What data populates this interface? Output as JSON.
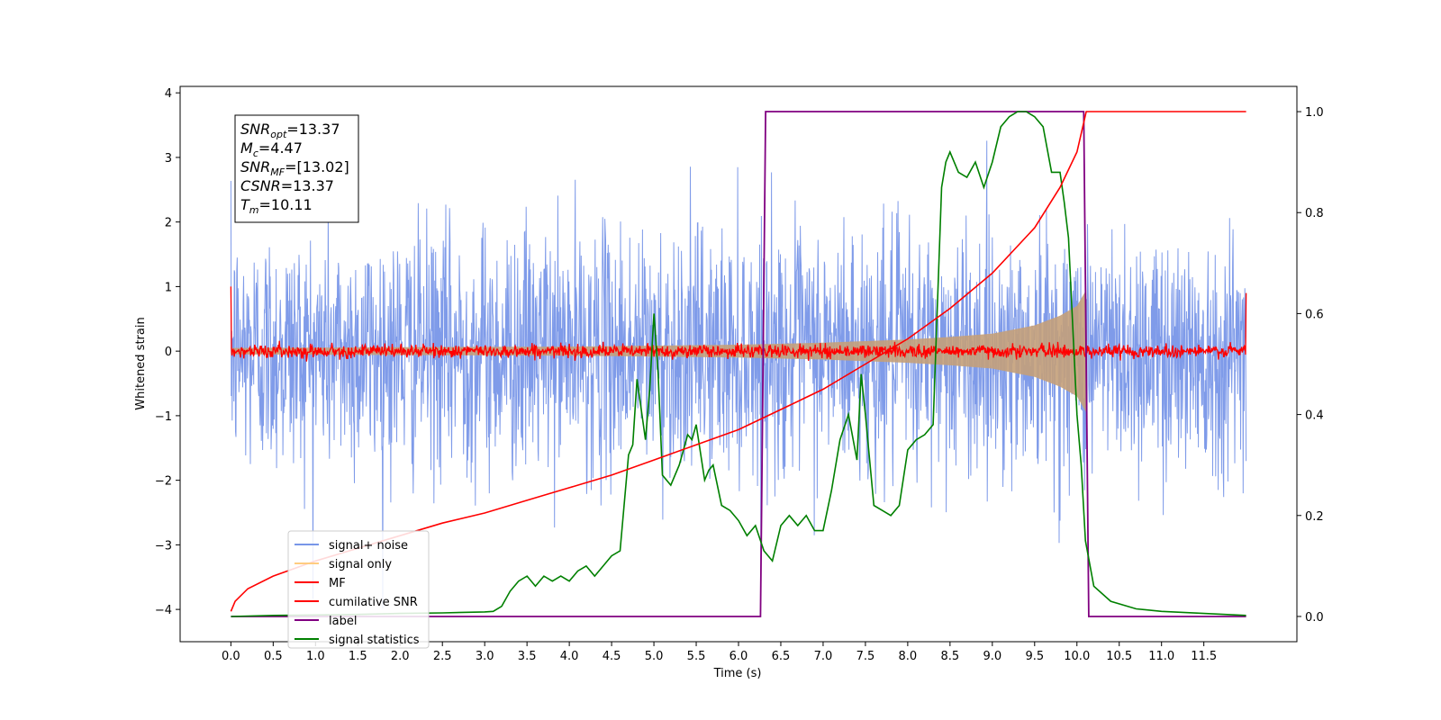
{
  "chart_data": {
    "type": "line",
    "title": "",
    "xlabel": "Time (s)",
    "ylabel": "Whitened strain",
    "xlim": [
      -0.6,
      12.6
    ],
    "ylim_left": [
      -4.5,
      4.1
    ],
    "ylim_right": [
      -0.05,
      1.05
    ],
    "x_ticks": [
      "0.0",
      "0.5",
      "1.0",
      "1.5",
      "2.0",
      "2.5",
      "3.0",
      "3.5",
      "4.0",
      "4.5",
      "5.0",
      "5.5",
      "6.0",
      "6.5",
      "7.0",
      "7.5",
      "8.0",
      "8.5",
      "9.0",
      "9.5",
      "10.0",
      "10.5",
      "11.0",
      "11.5"
    ],
    "y_ticks_left": [
      "4",
      "3",
      "2",
      "1",
      "0",
      "−1",
      "−2",
      "−3",
      "−4"
    ],
    "y_ticks_right": [
      "0.0",
      "0.2",
      "0.4",
      "0.6",
      "0.8",
      "1.0"
    ],
    "annotation": [
      {
        "var": "SNR",
        "sub": "opt",
        "value": "=13.37"
      },
      {
        "var": "M",
        "sub": "c",
        "value": "=4.47"
      },
      {
        "var": "SNR",
        "sub": "MF",
        "value": "=[13.02]"
      },
      {
        "var": "CSNR",
        "sub": "",
        "value": "=13.37"
      },
      {
        "var": "T",
        "sub": "m",
        "value": "=10.11"
      }
    ],
    "legend": [
      {
        "name": "signal+ noise",
        "color": "#7896e8"
      },
      {
        "name": "signal only",
        "color": "#ffcc80"
      },
      {
        "name": "MF",
        "color": "#ff0000"
      },
      {
        "name": "cumilative SNR",
        "color": "#ff0000"
      },
      {
        "name": "label",
        "color": "#800080"
      },
      {
        "name": "signal statistics",
        "color": "#008000"
      }
    ],
    "legend_location": "lower-left",
    "colors": {
      "noise": "#7896e8",
      "signal": "#c4a07a",
      "mf": "#ff0000",
      "csnr": "#ff0000",
      "label": "#800080",
      "stats": "#008000"
    },
    "series": [
      {
        "name": "signal+ noise",
        "axis": "left",
        "x_range": [
          0,
          12
        ],
        "amplitude_std": 0.95,
        "y_range": [
          -4.15,
          3.7
        ]
      },
      {
        "name": "signal only",
        "axis": "left",
        "envelope": [
          [
            0,
            0.05
          ],
          [
            2,
            0.06
          ],
          [
            4,
            0.07
          ],
          [
            6,
            0.1
          ],
          [
            7,
            0.13
          ],
          [
            8,
            0.18
          ],
          [
            8.5,
            0.22
          ],
          [
            9,
            0.27
          ],
          [
            9.5,
            0.4
          ],
          [
            9.8,
            0.55
          ],
          [
            10,
            0.7
          ],
          [
            10.11,
            0.95
          ],
          [
            10.12,
            0
          ]
        ]
      },
      {
        "name": "MF",
        "axis": "left",
        "x_range": [
          0,
          12
        ],
        "baseline": 0.0,
        "amplitude_std": 0.05,
        "edges": [
          [
            0,
            1.0
          ],
          [
            12,
            0.9
          ]
        ]
      },
      {
        "name": "cumilative SNR",
        "axis": "right",
        "x": [
          0,
          0.05,
          0.2,
          0.5,
          1,
          1.5,
          2,
          2.5,
          3,
          3.5,
          4,
          4.5,
          5,
          5.5,
          6,
          6.5,
          7,
          7.5,
          8,
          8.5,
          9,
          9.5,
          9.8,
          10,
          10.11,
          12
        ],
        "y": [
          0.01,
          0.03,
          0.055,
          0.08,
          0.11,
          0.135,
          0.16,
          0.185,
          0.205,
          0.23,
          0.255,
          0.28,
          0.31,
          0.34,
          0.37,
          0.41,
          0.45,
          0.5,
          0.55,
          0.61,
          0.68,
          0.77,
          0.85,
          0.92,
          1.0,
          1.0
        ]
      },
      {
        "name": "label",
        "axis": "right",
        "x": [
          0,
          6.26,
          6.32,
          10.08,
          10.14,
          12
        ],
        "y": [
          0,
          0,
          1,
          1,
          0,
          0
        ]
      },
      {
        "name": "signal statistics",
        "axis": "right",
        "x": [
          0,
          0.5,
          1,
          1.5,
          2,
          2.5,
          3,
          3.1,
          3.2,
          3.3,
          3.4,
          3.5,
          3.6,
          3.7,
          3.8,
          3.9,
          4.0,
          4.1,
          4.2,
          4.3,
          4.4,
          4.5,
          4.6,
          4.7,
          4.75,
          4.8,
          4.9,
          4.95,
          5.0,
          5.05,
          5.1,
          5.2,
          5.3,
          5.4,
          5.45,
          5.5,
          5.6,
          5.65,
          5.7,
          5.8,
          5.9,
          6.0,
          6.1,
          6.2,
          6.3,
          6.4,
          6.5,
          6.6,
          6.7,
          6.8,
          6.9,
          7.0,
          7.1,
          7.2,
          7.3,
          7.4,
          7.45,
          7.5,
          7.6,
          7.7,
          7.8,
          7.9,
          8.0,
          8.1,
          8.2,
          8.3,
          8.4,
          8.45,
          8.5,
          8.6,
          8.7,
          8.8,
          8.9,
          9.0,
          9.1,
          9.2,
          9.3,
          9.4,
          9.5,
          9.6,
          9.7,
          9.8,
          9.85,
          9.9,
          10.0,
          10.05,
          10.1,
          10.2,
          10.4,
          10.7,
          11.0,
          12
        ],
        "y": [
          0,
          0.002,
          0.003,
          0.004,
          0.006,
          0.007,
          0.009,
          0.01,
          0.02,
          0.05,
          0.07,
          0.08,
          0.06,
          0.08,
          0.07,
          0.08,
          0.07,
          0.09,
          0.1,
          0.08,
          0.1,
          0.12,
          0.13,
          0.32,
          0.34,
          0.47,
          0.35,
          0.45,
          0.6,
          0.48,
          0.28,
          0.26,
          0.3,
          0.36,
          0.35,
          0.38,
          0.27,
          0.29,
          0.3,
          0.22,
          0.21,
          0.19,
          0.16,
          0.18,
          0.13,
          0.11,
          0.18,
          0.2,
          0.18,
          0.2,
          0.17,
          0.17,
          0.25,
          0.35,
          0.4,
          0.31,
          0.48,
          0.4,
          0.22,
          0.21,
          0.2,
          0.22,
          0.33,
          0.35,
          0.36,
          0.38,
          0.85,
          0.9,
          0.92,
          0.88,
          0.87,
          0.9,
          0.85,
          0.9,
          0.97,
          0.99,
          1.0,
          1.0,
          0.99,
          0.97,
          0.88,
          0.88,
          0.82,
          0.75,
          0.4,
          0.3,
          0.15,
          0.06,
          0.03,
          0.015,
          0.01,
          0.002
        ]
      }
    ]
  }
}
